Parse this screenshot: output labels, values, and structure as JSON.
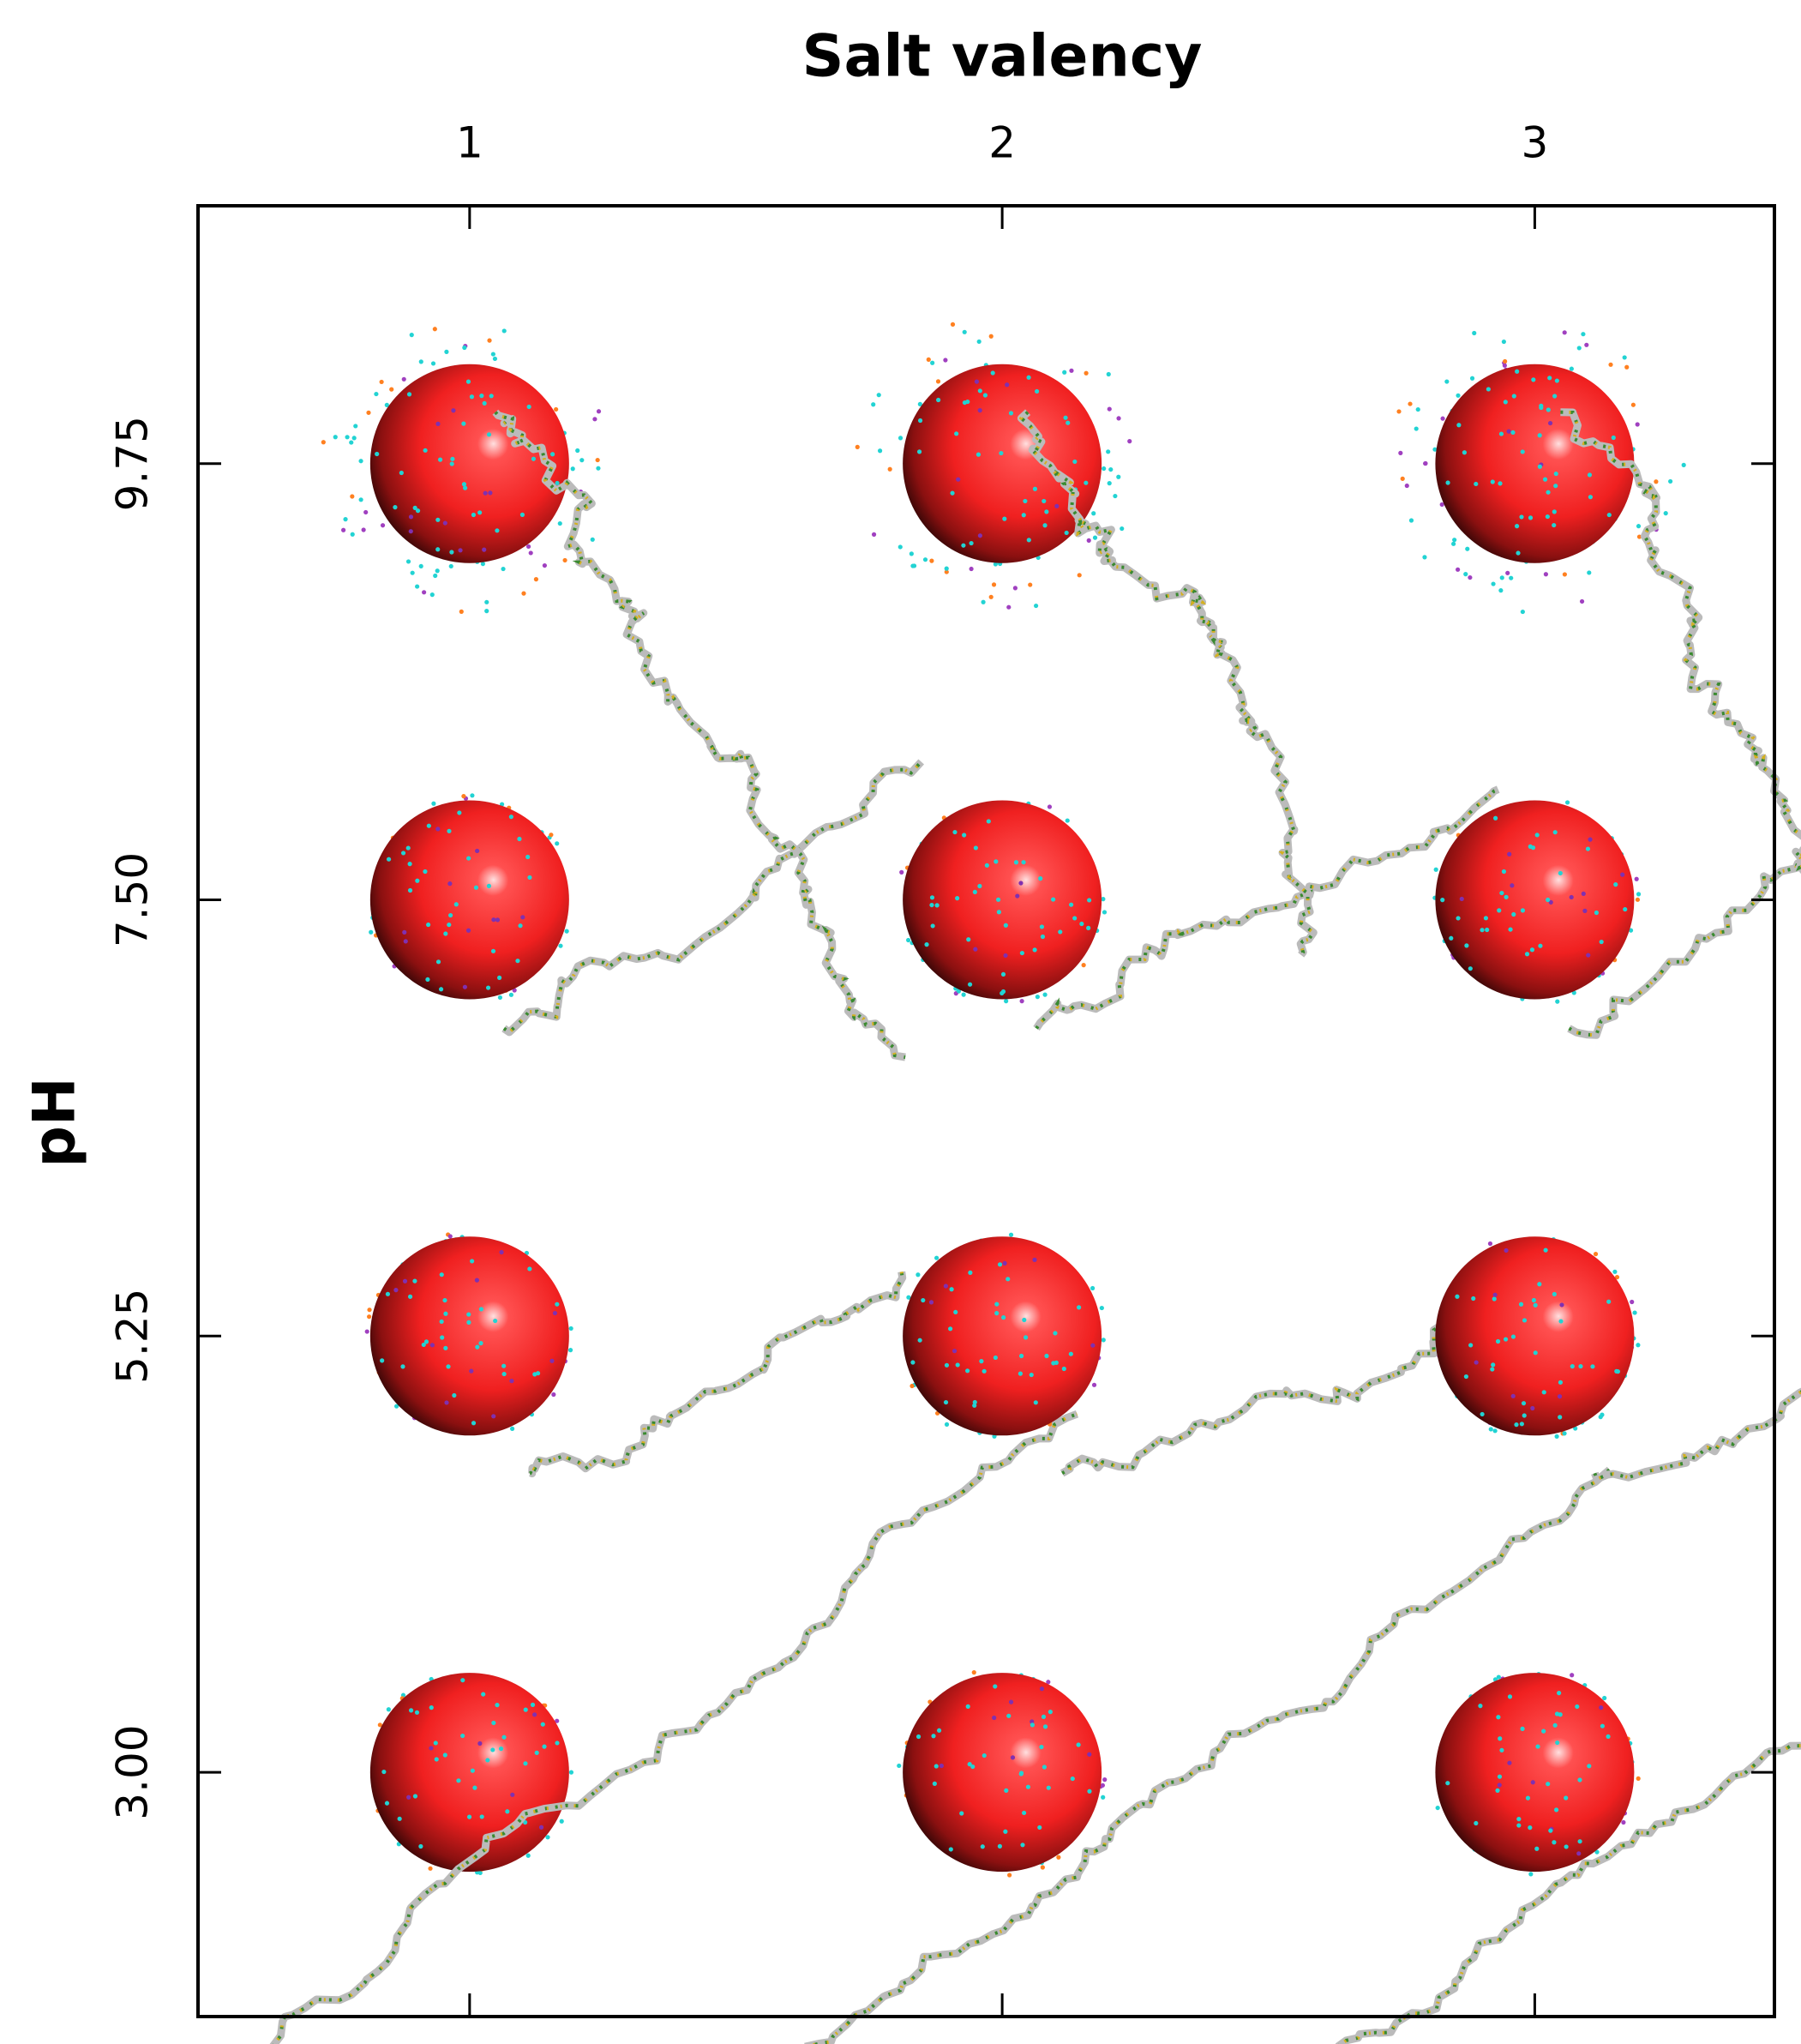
{
  "chart_data": {
    "type": "snapshot-grid",
    "title": "Salt valency",
    "y_label": "pH",
    "xticks": [
      1,
      2,
      3
    ],
    "xlim": [
      0.49,
      3.45
    ],
    "yticks": [
      {
        "value": 3,
        "label": "3.00"
      },
      {
        "value": 5.25,
        "label": "5.25"
      },
      {
        "value": 7.5,
        "label": "7.50"
      },
      {
        "value": 9.75,
        "label": "9.75"
      }
    ],
    "ylim": [
      1.74,
      11.08
    ],
    "sphere_color": "#ff2a2a"
  }
}
